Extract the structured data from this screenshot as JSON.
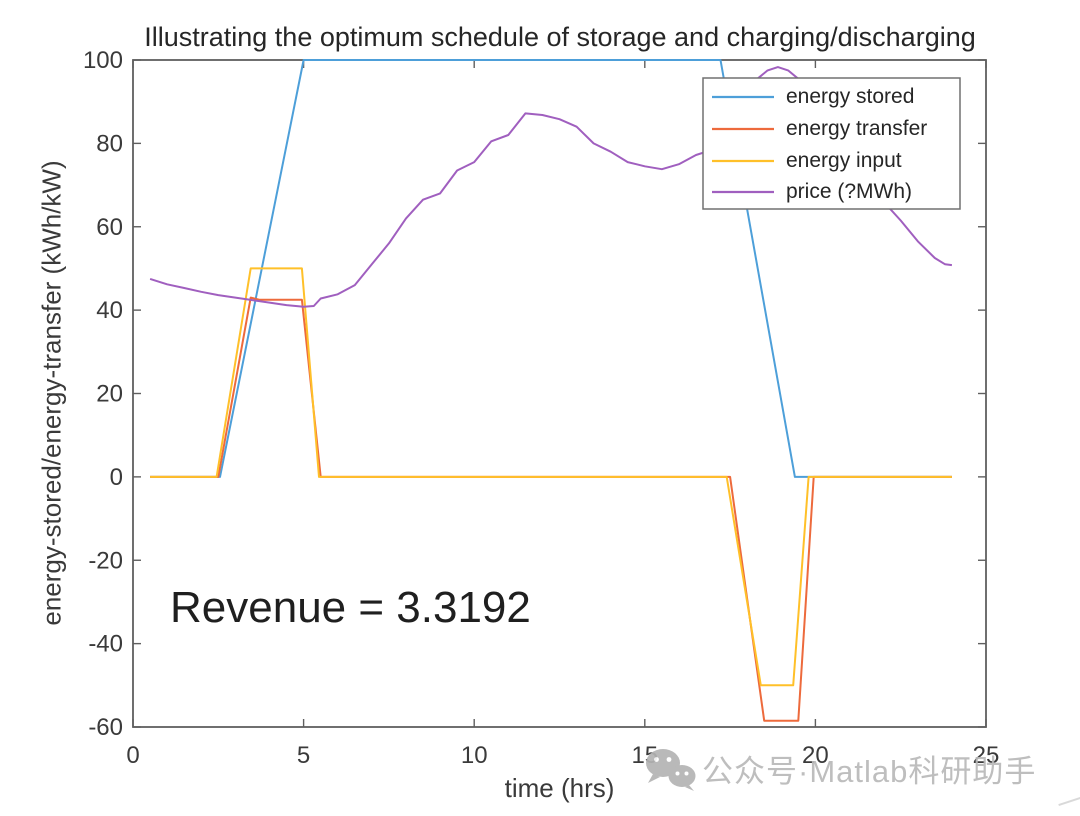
{
  "title": "Illustrating the optimum schedule of storage and charging/discharging",
  "annotation": {
    "revenue_label": "Revenue = 3.3192"
  },
  "watermark": {
    "text": "公众号·Matlab科研助手",
    "icon": "wechat-icon",
    "color": "#b9b9b9"
  },
  "axis": {
    "spine_color": "#5f5f5f",
    "tick_label_color": "#3a3a3a"
  },
  "chart_data": {
    "type": "line",
    "title": "Illustrating the optimum schedule of storage and charging/discharging",
    "xlabel": "time (hrs)",
    "ylabel": "energy-stored/energy-transfer (kWh/kW)",
    "xlim": [
      0,
      25
    ],
    "ylim": [
      -60,
      100
    ],
    "xticks": [
      0,
      5,
      10,
      15,
      20,
      25
    ],
    "yticks": [
      -60,
      -40,
      -20,
      0,
      20,
      40,
      60,
      80,
      100
    ],
    "grid": false,
    "legend_position": "upper-right-inside",
    "series": [
      {
        "name": "energy stored",
        "color": "#4D9FD9",
        "points": [
          [
            0.5,
            0
          ],
          [
            2.55,
            0
          ],
          [
            5,
            100
          ],
          [
            17.22,
            100
          ],
          [
            19.4,
            0
          ],
          [
            24,
            0
          ]
        ]
      },
      {
        "name": "energy transfer",
        "color": "#ED6A3C",
        "points": [
          [
            0.5,
            0
          ],
          [
            2.5,
            0
          ],
          [
            3.45,
            43
          ],
          [
            3.7,
            42.5
          ],
          [
            4.95,
            42.5
          ],
          [
            5.5,
            0
          ],
          [
            17.5,
            0
          ],
          [
            18.5,
            -58.5
          ],
          [
            19.5,
            -58.5
          ],
          [
            19.95,
            0
          ],
          [
            24,
            0
          ]
        ]
      },
      {
        "name": "energy input",
        "color": "#FFC029",
        "points": [
          [
            0.5,
            0
          ],
          [
            2.45,
            0
          ],
          [
            3.45,
            50
          ],
          [
            4.95,
            50
          ],
          [
            5.45,
            0
          ],
          [
            17.4,
            0
          ],
          [
            18.4,
            -50
          ],
          [
            19.35,
            -50
          ],
          [
            19.8,
            0
          ],
          [
            24,
            0
          ]
        ]
      },
      {
        "name": "price (?MWh)",
        "color": "#A05FBF",
        "points": [
          [
            0.5,
            47.5
          ],
          [
            1,
            46.2
          ],
          [
            1.5,
            45.3
          ],
          [
            2,
            44.4
          ],
          [
            2.5,
            43.6
          ],
          [
            3,
            43
          ],
          [
            3.5,
            42.4
          ],
          [
            4,
            41.8
          ],
          [
            4.5,
            41.2
          ],
          [
            5,
            40.8
          ],
          [
            5.3,
            41
          ],
          [
            5.5,
            42.8
          ],
          [
            6,
            43.8
          ],
          [
            6.5,
            46
          ],
          [
            7,
            51
          ],
          [
            7.5,
            56
          ],
          [
            8,
            62
          ],
          [
            8.5,
            66.5
          ],
          [
            9,
            68
          ],
          [
            9.5,
            73.5
          ],
          [
            10,
            75.5
          ],
          [
            10.5,
            80.5
          ],
          [
            11,
            82
          ],
          [
            11.5,
            87.2
          ],
          [
            12,
            86.8
          ],
          [
            12.5,
            85.8
          ],
          [
            13,
            84
          ],
          [
            13.5,
            80
          ],
          [
            14,
            78
          ],
          [
            14.5,
            75.5
          ],
          [
            15,
            74.5
          ],
          [
            15.5,
            73.8
          ],
          [
            16,
            75
          ],
          [
            16.5,
            77.2
          ],
          [
            17,
            78.5
          ],
          [
            17.5,
            82
          ],
          [
            18,
            90
          ],
          [
            18.3,
            95.5
          ],
          [
            18.6,
            97.5
          ],
          [
            18.9,
            98.3
          ],
          [
            19.2,
            97.5
          ],
          [
            19.5,
            95.5
          ],
          [
            20,
            90
          ],
          [
            20.5,
            83.5
          ],
          [
            21,
            77
          ],
          [
            21.5,
            71
          ],
          [
            22,
            66
          ],
          [
            22.5,
            61.5
          ],
          [
            23,
            56.5
          ],
          [
            23.5,
            52.5
          ],
          [
            23.8,
            51
          ],
          [
            24,
            50.8
          ]
        ]
      }
    ]
  }
}
